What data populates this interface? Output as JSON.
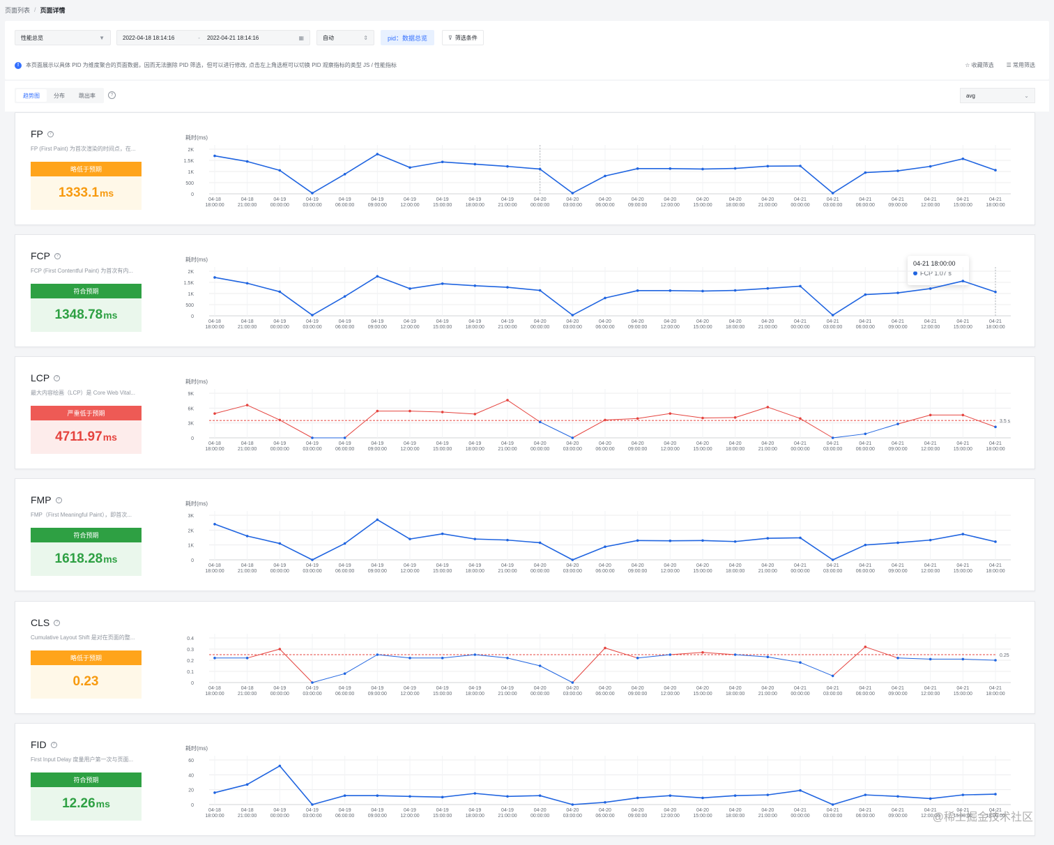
{
  "breadcrumb": {
    "parent": "页面列表",
    "separator": "/",
    "current": "页面详情"
  },
  "filters": {
    "view_select": "性能总览",
    "date_start": "2022-04-18 18:14:16",
    "date_sep": "-",
    "date_end": "2022-04-21 18:14:16",
    "granularity": "自动",
    "pid_label": "pid：",
    "pid_value": "数据总览",
    "filter_button": "筛选条件",
    "notice": "本页面展示以具体 PID 为维度聚合的页面数据，因而无法删除 PID 筛选，但可以进行修改, 点击左上角选框可以切换 PID 观察指标的类型 JS / 性能指标",
    "save_filter": "收藏筛选",
    "common_filter": "常用筛选"
  },
  "tabs": [
    "趋势图",
    "分布",
    "跳出率"
  ],
  "aggregation": "avg",
  "time_labels": [
    [
      "04-18",
      "18:00:00"
    ],
    [
      "04-18",
      "21:00:00"
    ],
    [
      "04-19",
      "00:00:00"
    ],
    [
      "04-19",
      "03:00:00"
    ],
    [
      "04-19",
      "06:00:00"
    ],
    [
      "04-19",
      "09:00:00"
    ],
    [
      "04-19",
      "12:00:00"
    ],
    [
      "04-19",
      "15:00:00"
    ],
    [
      "04-19",
      "18:00:00"
    ],
    [
      "04-19",
      "21:00:00"
    ],
    [
      "04-20",
      "00:00:00"
    ],
    [
      "04-20",
      "03:00:00"
    ],
    [
      "04-20",
      "06:00:00"
    ],
    [
      "04-20",
      "09:00:00"
    ],
    [
      "04-20",
      "12:00:00"
    ],
    [
      "04-20",
      "15:00:00"
    ],
    [
      "04-20",
      "18:00:00"
    ],
    [
      "04-20",
      "21:00:00"
    ],
    [
      "04-21",
      "00:00:00"
    ],
    [
      "04-21",
      "03:00:00"
    ],
    [
      "04-21",
      "06:00:00"
    ],
    [
      "04-21",
      "09:00:00"
    ],
    [
      "04-21",
      "12:00:00"
    ],
    [
      "04-21",
      "15:00:00"
    ],
    [
      "04-21",
      "18:00:00"
    ]
  ],
  "colors": {
    "line": "#1f64e0",
    "over": "#e5433e",
    "threshold": "#e5433e"
  },
  "metrics": [
    {
      "name": "FP",
      "desc": "FP (First Paint) 为首次渲染的时间点，在...",
      "status": "略低于预期",
      "status_level": "warn",
      "value": "1333.1",
      "unit": "ms"
    },
    {
      "name": "FCP",
      "desc": "FCP (First Contentful Paint) 为首次有内...",
      "status": "符合预期",
      "status_level": "ok",
      "value": "1348.78",
      "unit": "ms",
      "tooltip": {
        "time": "04-21 18:00:00",
        "label": "FCP 1.07 s"
      }
    },
    {
      "name": "LCP",
      "desc": "最大内容绘画（LCP）是 Core Web Vital...",
      "status": "严重低于预期",
      "status_level": "bad",
      "value": "4711.97",
      "unit": "ms"
    },
    {
      "name": "FMP",
      "desc": "FMP（First Meaningful Paint），即首次...",
      "status": "符合预期",
      "status_level": "ok",
      "value": "1618.28",
      "unit": "ms"
    },
    {
      "name": "CLS",
      "desc": "Cumulative Layout Shift 是对在页面的整...",
      "status": "略低于预期",
      "status_level": "warn",
      "value": "0.23",
      "unit": ""
    },
    {
      "name": "FID",
      "desc": "First Input Delay 度量用户第一次与页面...",
      "status": "符合预期",
      "status_level": "ok",
      "value": "12.26",
      "unit": "ms"
    }
  ],
  "chart_data": [
    {
      "type": "line",
      "title": "FP",
      "ylabel": "耗时(ms)",
      "ylim": [
        0,
        2000
      ],
      "yticks": [
        0,
        500,
        1000,
        1500,
        2000
      ],
      "ytick_labels": [
        "0",
        "500",
        "1K",
        "1.5K",
        "2K"
      ],
      "values": [
        1700,
        1450,
        1050,
        30,
        880,
        1780,
        1180,
        1430,
        1330,
        1230,
        1110,
        30,
        800,
        1130,
        1130,
        1110,
        1140,
        1240,
        1250,
        30,
        950,
        1030,
        1230,
        1570,
        1060
      ]
    },
    {
      "type": "line",
      "title": "FCP",
      "ylabel": "耗时(ms)",
      "ylim": [
        0,
        2000
      ],
      "yticks": [
        0,
        500,
        1000,
        1500,
        2000
      ],
      "ytick_labels": [
        "0",
        "500",
        "1K",
        "1.5K",
        "2K"
      ],
      "values": [
        1720,
        1460,
        1080,
        30,
        870,
        1770,
        1220,
        1440,
        1350,
        1280,
        1140,
        30,
        800,
        1130,
        1130,
        1110,
        1140,
        1230,
        1330,
        30,
        950,
        1030,
        1220,
        1560,
        1070
      ]
    },
    {
      "type": "line",
      "title": "LCP",
      "ylabel": "耗时(ms)",
      "ylim": [
        0,
        9000
      ],
      "yticks": [
        0,
        3000,
        6000,
        9000
      ],
      "ytick_labels": [
        "0",
        "3K",
        "6K",
        "9K"
      ],
      "threshold": 3500,
      "threshold_label": "3.5 s",
      "values": [
        4900,
        6600,
        3600,
        0,
        0,
        5400,
        5400,
        5200,
        4800,
        7600,
        3200,
        0,
        3600,
        3900,
        4900,
        4000,
        4100,
        6200,
        3900,
        0,
        800,
        2800,
        4600,
        4600,
        2200
      ]
    },
    {
      "type": "line",
      "title": "FMP",
      "ylabel": "耗时(ms)",
      "ylim": [
        0,
        3000
      ],
      "yticks": [
        0,
        1000,
        2000,
        3000
      ],
      "ytick_labels": [
        "0",
        "1K",
        "2K",
        "3K"
      ],
      "values": [
        2400,
        1600,
        1100,
        0,
        1100,
        2700,
        1400,
        1750,
        1400,
        1330,
        1150,
        0,
        880,
        1300,
        1280,
        1300,
        1230,
        1450,
        1480,
        0,
        1000,
        1150,
        1330,
        1730,
        1220
      ]
    },
    {
      "type": "line",
      "title": "CLS",
      "ylabel": "",
      "ylim": [
        0,
        0.4
      ],
      "yticks": [
        0,
        0.1,
        0.2,
        0.3,
        0.4
      ],
      "ytick_labels": [
        "0",
        "0.1",
        "0.2",
        "0.3",
        "0.4"
      ],
      "threshold": 0.25,
      "threshold_label": "0.25",
      "values": [
        0.22,
        0.22,
        0.3,
        0.0,
        0.08,
        0.25,
        0.22,
        0.22,
        0.25,
        0.22,
        0.15,
        0.0,
        0.31,
        0.22,
        0.25,
        0.27,
        0.25,
        0.23,
        0.18,
        0.06,
        0.32,
        0.22,
        0.21,
        0.21,
        0.2
      ]
    },
    {
      "type": "line",
      "title": "FID",
      "ylabel": "耗时(ms)",
      "ylim": [
        0,
        60
      ],
      "yticks": [
        0,
        20,
        40,
        60
      ],
      "ytick_labels": [
        "0",
        "20",
        "40",
        "60"
      ],
      "values": [
        16,
        27,
        52,
        0,
        12,
        12,
        11,
        10,
        15,
        11,
        12,
        0,
        3,
        9,
        12,
        9,
        12,
        13,
        19,
        0,
        13,
        11,
        8,
        13,
        14
      ]
    }
  ],
  "watermark": "@稀土掘金技术社区"
}
